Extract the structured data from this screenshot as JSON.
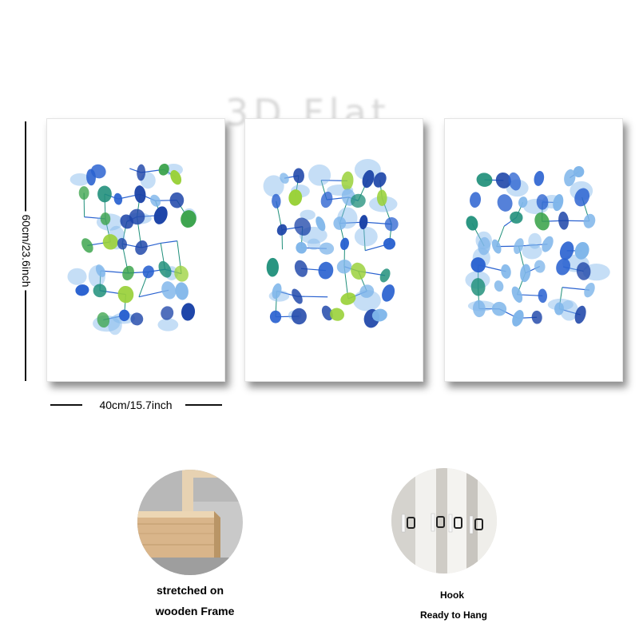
{
  "watermark": "3D Flat",
  "dimensions": {
    "height_label": "60cm/23.6inch",
    "width_label": "40cm/15.7inch"
  },
  "panels": [
    {
      "artwork": "blue-green abstract dots and lines"
    },
    {
      "artwork": "blue abstract dots and lines"
    },
    {
      "artwork": "light blue abstract dots and lines"
    }
  ],
  "features": {
    "frame": {
      "line1": "stretched on",
      "line2": "wooden Frame"
    },
    "hook": {
      "line1": "Hook",
      "line2": "Ready to Hang"
    }
  },
  "colors": {
    "deep_blue": "#1c44a8",
    "royal_blue": "#2a62d0",
    "light_blue": "#7fb6ea",
    "teal": "#1f8f7a",
    "green": "#3aa34a",
    "lime": "#9ad13a",
    "wood": "#d9b58a"
  }
}
